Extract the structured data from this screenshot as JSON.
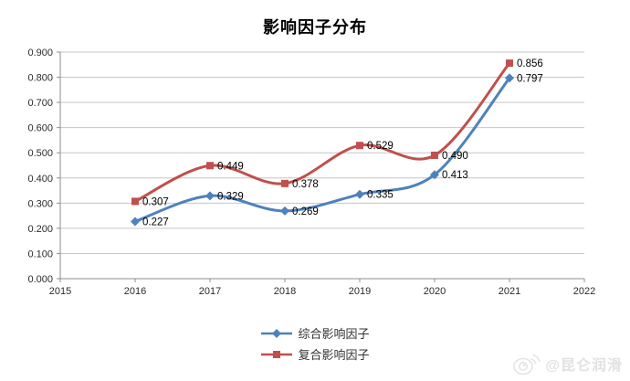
{
  "title": "影响因子分布",
  "watermark": {
    "icon": "weibo-icon",
    "text": "@昆仑润滑"
  },
  "legend": {
    "series1_label": "综合影响因子",
    "series2_label": "复合影响因子"
  },
  "chart_data": {
    "type": "line",
    "title": "影响因子分布",
    "x": [
      2016,
      2017,
      2018,
      2019,
      2020,
      2021
    ],
    "series": [
      {
        "name": "综合影响因子",
        "color": "#4F81BD",
        "marker": "diamond",
        "values": [
          0.227,
          0.329,
          0.269,
          0.335,
          0.413,
          0.797
        ]
      },
      {
        "name": "复合影响因子",
        "color": "#C0504D",
        "marker": "square",
        "values": [
          0.307,
          0.449,
          0.378,
          0.529,
          0.49,
          0.856
        ]
      }
    ],
    "xlim": [
      2015,
      2022
    ],
    "ylim": [
      0.0,
      0.9
    ],
    "x_tick_labels": [
      "2015",
      "2016",
      "2017",
      "2018",
      "2019",
      "2020",
      "2021",
      "2022"
    ],
    "y_tick_labels": [
      "0.000",
      "0.100",
      "0.200",
      "0.300",
      "0.400",
      "0.500",
      "0.600",
      "0.700",
      "0.800",
      "0.900"
    ],
    "y_tick_step": 0.1,
    "grid": true,
    "smooth_lines": true,
    "data_labels": true,
    "data_label_decimals": 3,
    "legend_position": "bottom",
    "axis_color": "#8c8c8c",
    "grid_color": "#c6c6c6"
  }
}
